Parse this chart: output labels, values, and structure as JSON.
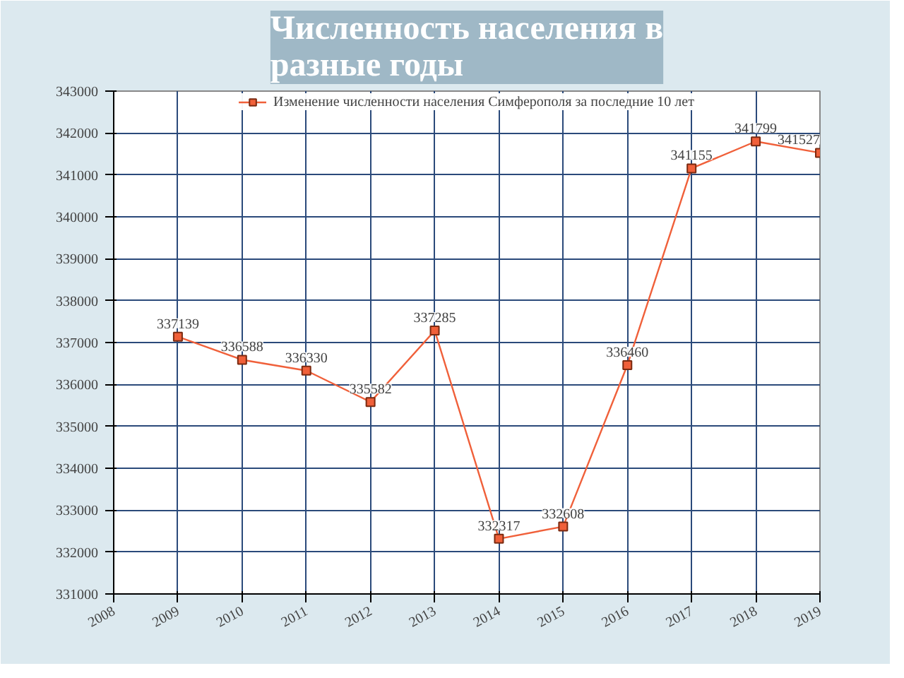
{
  "chart_data": {
    "type": "line",
    "title": "Численность населения в разные годы",
    "x": [
      2009,
      2010,
      2011,
      2012,
      2013,
      2014,
      2015,
      2016,
      2017,
      2018,
      2019
    ],
    "series": [
      {
        "name": "Изменение численности населения Симферополя за последние 10 лет",
        "color": "#f0603a",
        "values": [
          337139,
          336588,
          336330,
          335582,
          337285,
          332317,
          332608,
          336460,
          341155,
          341799,
          341527
        ]
      }
    ],
    "xlim": [
      2008,
      2019
    ],
    "xticks": [
      2008,
      2009,
      2010,
      2011,
      2012,
      2013,
      2014,
      2015,
      2016,
      2017,
      2018,
      2019
    ],
    "ylim": [
      331000,
      343000
    ],
    "yticks": [
      331000,
      332000,
      333000,
      334000,
      335000,
      336000,
      337000,
      338000,
      339000,
      340000,
      341000,
      342000,
      343000
    ],
    "grid": true,
    "legend": "top",
    "marker": "square",
    "line_style": "solid",
    "data_labels": true
  }
}
